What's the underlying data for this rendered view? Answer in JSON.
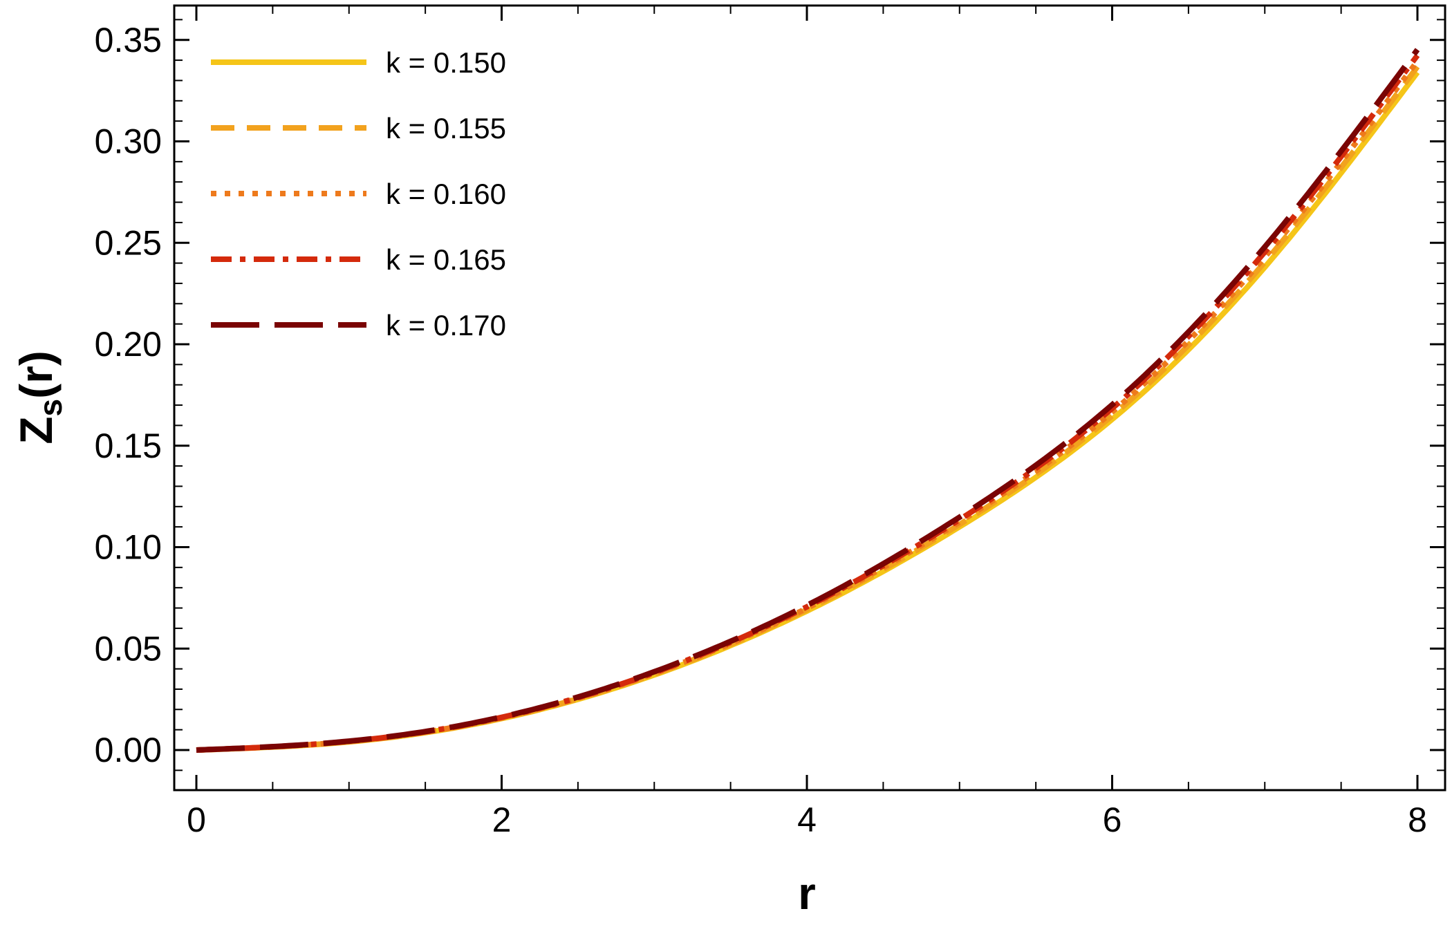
{
  "chart_data": {
    "type": "line",
    "title": "",
    "xlabel": "r",
    "ylabel_main": "Z",
    "ylabel_sub": "s",
    "ylabel_tail": "(r)",
    "xlim": [
      -0.15,
      8.2
    ],
    "ylim": [
      -0.02,
      0.365
    ],
    "x_ticks": [
      0,
      2,
      4,
      6,
      8
    ],
    "x_tick_labels": [
      "0",
      "2",
      "4",
      "6",
      "8"
    ],
    "y_ticks": [
      0.0,
      0.05,
      0.1,
      0.15,
      0.2,
      0.25,
      0.3,
      0.35
    ],
    "y_tick_labels": [
      "0.00",
      "0.05",
      "0.10",
      "0.15",
      "0.20",
      "0.25",
      "0.30",
      "0.35"
    ],
    "grid": false,
    "legend_position": "top-left",
    "series": [
      {
        "name": "k = 0.150",
        "color": "#F5C518",
        "dash": "solid",
        "x": [
          0,
          1,
          2,
          3,
          4,
          5,
          6,
          7,
          8
        ],
        "y": [
          0,
          0.004,
          0.0155,
          0.037,
          0.0685,
          0.11,
          0.163,
          0.238,
          0.334
        ]
      },
      {
        "name": "k = 0.155",
        "color": "#F2A21E",
        "dash": "dashed",
        "x": [
          0,
          1,
          2,
          3,
          4,
          5,
          6,
          7,
          8
        ],
        "y": [
          0,
          0.0041,
          0.0157,
          0.0374,
          0.0692,
          0.1112,
          0.1648,
          0.2405,
          0.3368
        ]
      },
      {
        "name": "k = 0.160",
        "color": "#EE7A1C",
        "dash": "dotted",
        "x": [
          0,
          1,
          2,
          3,
          4,
          5,
          6,
          7,
          8
        ],
        "y": [
          0,
          0.0042,
          0.0159,
          0.0378,
          0.0699,
          0.1124,
          0.1666,
          0.243,
          0.3396
        ]
      },
      {
        "name": "k = 0.165",
        "color": "#D42A0C",
        "dash": "dashdot",
        "x": [
          0,
          1,
          2,
          3,
          4,
          5,
          6,
          7,
          8
        ],
        "y": [
          0,
          0.0043,
          0.0161,
          0.0382,
          0.0706,
          0.1136,
          0.1684,
          0.2455,
          0.3424
        ]
      },
      {
        "name": "k = 0.170",
        "color": "#7A0404",
        "dash": "longdash",
        "x": [
          0,
          1,
          2,
          3,
          4,
          5,
          6,
          7,
          8
        ],
        "y": [
          0,
          0.0044,
          0.0163,
          0.0386,
          0.0713,
          0.1148,
          0.1702,
          0.248,
          0.3452
        ]
      }
    ]
  }
}
